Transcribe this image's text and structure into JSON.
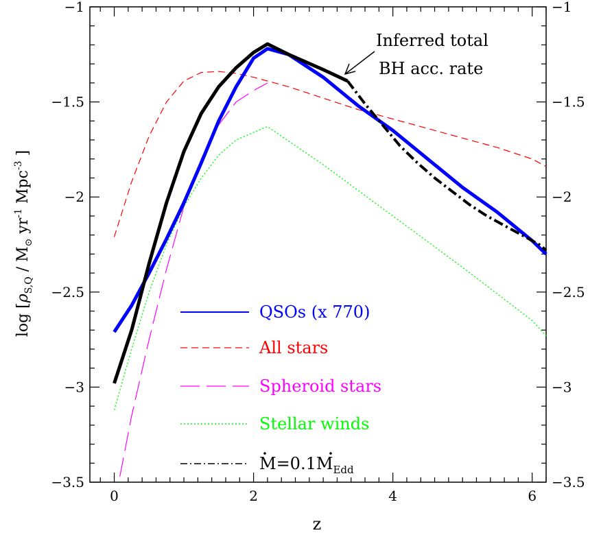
{
  "chart_data": {
    "type": "line",
    "xlabel": "z",
    "ylabel": "log [ρ̇S,Q / M⊙ yr⁻¹ Mpc⁻³ ]",
    "ylabel_parts": {
      "prefix": "log [",
      "rho": "ρ",
      "rho_sub": "S,Q",
      "mid": " / M",
      "sun": "⊙",
      "yr": "  yr",
      "yr_sup": "-1",
      "mpc": "  Mpc",
      "mpc_sup": "-3",
      "suffix": "  ]"
    },
    "xlim": [
      -0.35,
      6.2
    ],
    "ylim": [
      -3.5,
      -1.0
    ],
    "xticks": [
      0,
      2,
      4,
      6
    ],
    "xtick_labels": [
      "0",
      "2",
      "4",
      "6"
    ],
    "yticks": [
      -3.5,
      -3,
      -2.5,
      -2,
      -1.5,
      -1
    ],
    "ytick_labels": [
      "−3.5",
      "−3",
      "−2.5",
      "−2",
      "−1.5",
      "−1"
    ],
    "right_axis_labels": true,
    "grid": false,
    "legend_position": "bottom-center",
    "series": [
      {
        "key": "qso",
        "name": "QSOs (x 770)",
        "style": "solid",
        "color": "#0000ff",
        "x": [
          0,
          0.25,
          0.5,
          0.75,
          1.0,
          1.25,
          1.5,
          1.75,
          2.0,
          2.2,
          2.5,
          3.0,
          3.5,
          4.0,
          4.5,
          5.0,
          5.5,
          6.0,
          6.2
        ],
        "y": [
          -2.71,
          -2.57,
          -2.4,
          -2.22,
          -2.03,
          -1.82,
          -1.6,
          -1.42,
          -1.27,
          -1.22,
          -1.25,
          -1.37,
          -1.52,
          -1.65,
          -1.8,
          -1.95,
          -2.08,
          -2.23,
          -2.3
        ]
      },
      {
        "key": "allstars",
        "name": "All stars",
        "style": "dashed",
        "color": "#ff0000",
        "x": [
          0,
          0.25,
          0.5,
          0.75,
          1.0,
          1.25,
          1.5,
          1.75,
          2.0,
          2.5,
          3.0,
          3.5,
          4.0,
          4.5,
          5.0,
          5.5,
          6.0,
          6.2
        ],
        "y": [
          -2.21,
          -1.92,
          -1.68,
          -1.5,
          -1.39,
          -1.345,
          -1.34,
          -1.35,
          -1.37,
          -1.42,
          -1.48,
          -1.54,
          -1.59,
          -1.64,
          -1.69,
          -1.74,
          -1.8,
          -1.84
        ]
      },
      {
        "key": "spheroid",
        "name": "Spheroid stars",
        "style": "longdash",
        "color": "#ff00ff",
        "x": [
          0.08,
          0.25,
          0.5,
          0.75,
          1.0,
          1.25,
          1.5,
          1.75,
          2.0,
          2.2
        ],
        "y": [
          -3.47,
          -3.15,
          -2.75,
          -2.38,
          -2.05,
          -1.8,
          -1.62,
          -1.5,
          -1.44,
          -1.4
        ]
      },
      {
        "key": "winds",
        "name": "Stellar winds",
        "style": "dotted",
        "color": "#00ff00",
        "x": [
          0,
          0.25,
          0.5,
          0.75,
          1.0,
          1.25,
          1.5,
          1.75,
          2.0,
          2.2,
          3.0,
          4.0,
          5.0,
          6.0,
          6.2
        ],
        "y": [
          -3.12,
          -2.8,
          -2.5,
          -2.25,
          -2.05,
          -1.9,
          -1.78,
          -1.7,
          -1.66,
          -1.63,
          -1.83,
          -2.1,
          -2.37,
          -2.65,
          -2.73
        ]
      },
      {
        "key": "inferred",
        "name": "Inferred total BH acc. rate",
        "style": "solid-thick",
        "color": "#000000",
        "x": [
          0,
          0.25,
          0.5,
          0.75,
          1.0,
          1.25,
          1.5,
          1.75,
          2.0,
          2.2,
          2.5,
          3.0,
          3.35
        ],
        "y": [
          -2.98,
          -2.7,
          -2.35,
          -2.03,
          -1.76,
          -1.56,
          -1.42,
          -1.32,
          -1.24,
          -1.195,
          -1.25,
          -1.33,
          -1.39
        ]
      },
      {
        "key": "eddington",
        "name": "Ṁ=0.1ṀEdd",
        "style": "dashdot",
        "color": "#000000",
        "x": [
          3.35,
          3.6,
          3.85,
          4.1,
          4.35,
          4.6,
          4.85,
          5.1,
          5.35,
          5.6,
          5.85,
          6.1,
          6.2
        ],
        "y": [
          -1.39,
          -1.51,
          -1.62,
          -1.73,
          -1.82,
          -1.9,
          -1.97,
          -2.04,
          -2.1,
          -2.15,
          -2.2,
          -2.25,
          -2.28
        ]
      }
    ],
    "legend": {
      "qso": "QSOs (x 770)",
      "allstars": "All stars",
      "spheroid": "Spheroid stars",
      "winds": "Stellar winds",
      "eddington_prefix": "M=0.1M",
      "eddington_sub": "Edd"
    },
    "annotation": {
      "line1": "Inferred total",
      "line2": "BH acc. rate"
    }
  }
}
